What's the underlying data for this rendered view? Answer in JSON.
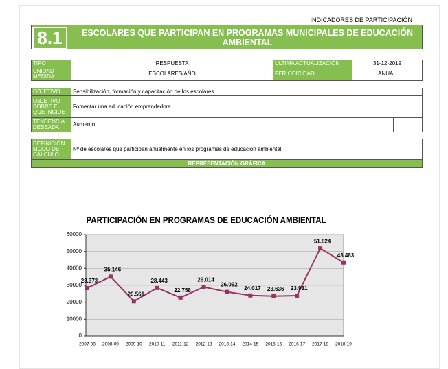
{
  "header": {
    "section": "INDICADORES DE PARTICIPACIÓN",
    "number": "8.1",
    "title": "ESCOLARES QUE PARTICIPAN EN PROGRAMAS MUNICIPALES DE EDUCACIÓN AMBIENTAL"
  },
  "info": {
    "tipo": {
      "label": "TIPO",
      "value": "RESPUESTA"
    },
    "actualizacion": {
      "label": "ULTIMA ACTUALIZACIÓN",
      "value": "31-12-2019"
    },
    "unidad": {
      "label": "UNIDAD MEDIDA",
      "value": "ESCOLARES/AÑO"
    },
    "periodicidad": {
      "label": "PERIODICIDAD",
      "value": "ANUAL"
    },
    "objetivo": {
      "label": "OBJETIVO",
      "value": "Sensibilización, formación y capacitación de los escolares."
    },
    "objetivo_incide": {
      "label": "OBJETIVO SOBRE EL QUE INCIDE",
      "value": "Fomentar una educación emprendedora."
    },
    "tendencia": {
      "label": "TENDENCIA DESEADA",
      "value": "Aumento."
    },
    "definicion": {
      "label": "DEFINICIÓN MODO DE CÁLCULO",
      "value": "Nº de escolares que participan anualmente en los programas de educación ambiental."
    }
  },
  "section_title": "REPRESENTACIÓN GRÁFICA",
  "chart_data": {
    "type": "line",
    "title": "PARTICIPACIÓN EN PROGRAMAS DE EDUCACIÓN AMBIENTAL",
    "categories": [
      "2007-08",
      "2008-09",
      "2009-10",
      "2010-11",
      "2011-12",
      "2012-13",
      "2013-14",
      "2014-15",
      "2015-16",
      "2016-17",
      "2017-18",
      "2018-19"
    ],
    "values": [
      28373,
      35146,
      20561,
      28443,
      22758,
      29014,
      26092,
      24017,
      23636,
      23931,
      51824,
      43483
    ],
    "value_labels": [
      "28.373",
      "35.146",
      "20.561",
      "28.443",
      "22.758",
      "29.014",
      "26.092",
      "24.017",
      "23.636",
      "23.931",
      "51.824",
      "43.483"
    ],
    "color": "#993366",
    "ylim": [
      0,
      60000
    ],
    "yticks": [
      0,
      10000,
      20000,
      30000,
      40000,
      50000,
      60000
    ],
    "grid": true
  }
}
